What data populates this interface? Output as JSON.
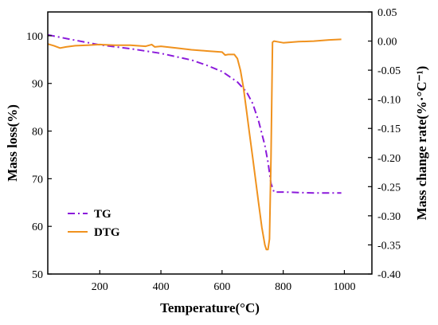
{
  "chart_data": {
    "type": "line",
    "title": "",
    "xlabel": "Temperature(°C)",
    "ylabel": "Mass loss(%)",
    "y2label": "Mass change rate(%·°C⁻¹)",
    "xlim": [
      30,
      1090
    ],
    "ylim": [
      50,
      105
    ],
    "y2lim": [
      -0.4,
      0.05
    ],
    "xticks": [
      200,
      400,
      600,
      800,
      1000
    ],
    "yticks": [
      50,
      60,
      70,
      80,
      90,
      100
    ],
    "y2ticks": [
      -0.4,
      -0.35,
      -0.3,
      -0.25,
      -0.2,
      -0.15,
      -0.1,
      -0.05,
      0.0,
      0.05
    ],
    "xtick_labels": [
      "200",
      "400",
      "600",
      "800",
      "1000"
    ],
    "ytick_labels": [
      "50",
      "60",
      "70",
      "80",
      "90",
      "100"
    ],
    "y2tick_labels": [
      "-0.40",
      "-0.35",
      "-0.30",
      "-0.25",
      "-0.20",
      "-0.15",
      "-0.10",
      "-0.05",
      "0.00",
      "0.05"
    ],
    "grid": false,
    "legend_position": "bottom-left",
    "series": [
      {
        "name": "TG",
        "axis": "left",
        "color": "#8B1ADB",
        "style": "dash-dot",
        "x": [
          30,
          100,
          200,
          300,
          400,
          500,
          550,
          600,
          650,
          680,
          700,
          720,
          740,
          750,
          760,
          770,
          800,
          850,
          900,
          950,
          990
        ],
        "y": [
          100.2,
          99.3,
          98.1,
          97.3,
          96.3,
          94.9,
          93.8,
          92.5,
          90.3,
          88.2,
          85.8,
          82.0,
          77.0,
          73.5,
          69.0,
          67.2,
          67.2,
          67.1,
          67.0,
          67.0,
          67.0
        ]
      },
      {
        "name": "DTG",
        "axis": "right",
        "color": "#F0921E",
        "style": "solid",
        "x": [
          30,
          50,
          70,
          90,
          120,
          160,
          200,
          250,
          300,
          350,
          370,
          380,
          400,
          450,
          500,
          550,
          600,
          610,
          620,
          640,
          650,
          660,
          670,
          680,
          690,
          700,
          710,
          720,
          730,
          740,
          745,
          750,
          755,
          760,
          765,
          770,
          780,
          800,
          850,
          900,
          950,
          990
        ],
        "y": [
          -0.005,
          -0.008,
          -0.012,
          -0.01,
          -0.008,
          -0.007,
          -0.006,
          -0.007,
          -0.007,
          -0.009,
          -0.006,
          -0.01,
          -0.009,
          -0.012,
          -0.015,
          -0.017,
          -0.019,
          -0.024,
          -0.023,
          -0.023,
          -0.03,
          -0.05,
          -0.08,
          -0.12,
          -0.16,
          -0.2,
          -0.24,
          -0.28,
          -0.32,
          -0.35,
          -0.358,
          -0.358,
          -0.34,
          -0.2,
          -0.002,
          0.0,
          -0.001,
          -0.003,
          -0.001,
          0.0,
          0.002,
          0.003
        ]
      }
    ]
  }
}
